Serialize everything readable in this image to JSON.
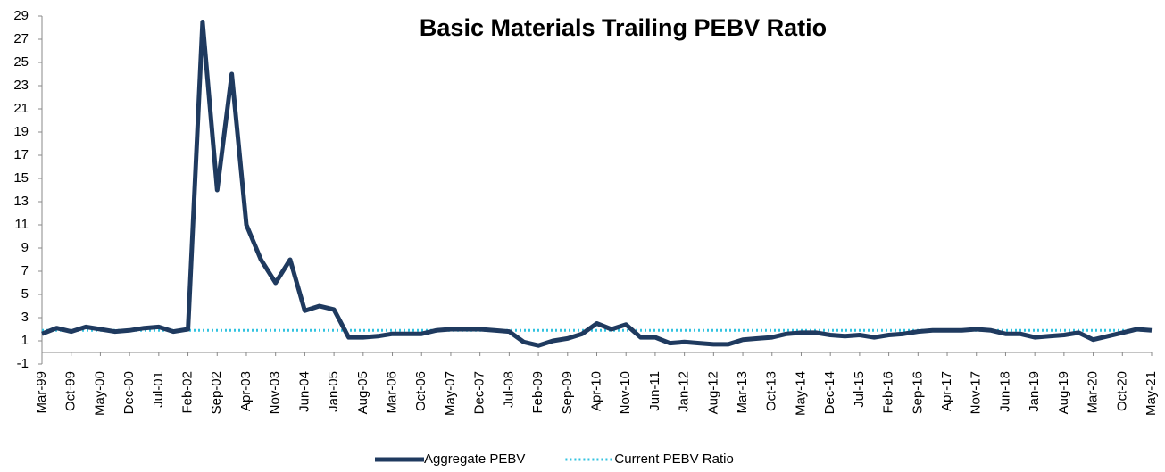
{
  "chart_data": {
    "type": "line",
    "title": "Basic Materials Trailing PEBV Ratio",
    "categories": [
      "Mar-99",
      null,
      "Oct-99",
      null,
      "May-00",
      null,
      "Dec-00",
      null,
      "Jul-01",
      null,
      "Feb-02",
      null,
      "Sep-02",
      null,
      "Apr-03",
      null,
      "Nov-03",
      null,
      "Jun-04",
      null,
      "Jan-05",
      null,
      "Aug-05",
      null,
      "Mar-06",
      null,
      "Oct-06",
      null,
      "May-07",
      null,
      "Dec-07",
      null,
      "Jul-08",
      null,
      "Feb-09",
      null,
      "Sep-09",
      null,
      "Apr-10",
      null,
      "Nov-10",
      null,
      "Jun-11",
      null,
      "Jan-12",
      null,
      "Aug-12",
      null,
      "Mar-13",
      null,
      "Oct-13",
      null,
      "May-14",
      null,
      "Dec-14",
      null,
      "Jul-15",
      null,
      "Feb-16",
      null,
      "Sep-16",
      null,
      "Apr-17",
      null,
      "Nov-17",
      null,
      "Jun-18",
      null,
      "Jan-19",
      null,
      "Aug-19",
      null,
      "Mar-20",
      null,
      "Oct-20",
      null,
      "May-21"
    ],
    "series": [
      {
        "name": "Aggregate PEBV",
        "color": "#1f3a5f",
        "values": [
          1.6,
          2.1,
          1.8,
          2.2,
          2.0,
          1.8,
          1.9,
          2.1,
          2.2,
          1.8,
          2.0,
          28.5,
          14,
          24,
          11,
          8,
          6,
          8,
          3.6,
          4.0,
          3.7,
          1.3,
          1.3,
          1.4,
          1.6,
          1.6,
          1.6,
          1.9,
          2.0,
          2.0,
          2.0,
          1.9,
          1.8,
          0.9,
          0.6,
          1.0,
          1.2,
          1.6,
          2.5,
          2.0,
          2.4,
          1.3,
          1.3,
          0.8,
          0.9,
          0.8,
          0.7,
          0.7,
          1.1,
          1.2,
          1.3,
          1.6,
          1.7,
          1.7,
          1.5,
          1.4,
          1.5,
          1.3,
          1.5,
          1.6,
          1.8,
          1.9,
          1.9,
          1.9,
          2.0,
          1.9,
          1.6,
          1.6,
          1.3,
          1.4,
          1.5,
          1.7,
          1.1,
          1.4,
          1.7,
          2.0,
          1.9
        ]
      }
    ],
    "reference_line": {
      "name": "Current PEBV Ratio",
      "value": 1.9,
      "color": "#33c3e0"
    },
    "ylim": [
      -1,
      29
    ],
    "yticks": [
      -1,
      1,
      3,
      5,
      7,
      9,
      11,
      13,
      15,
      17,
      19,
      21,
      23,
      25,
      27,
      29
    ],
    "grid": false,
    "legend": "bottom"
  }
}
